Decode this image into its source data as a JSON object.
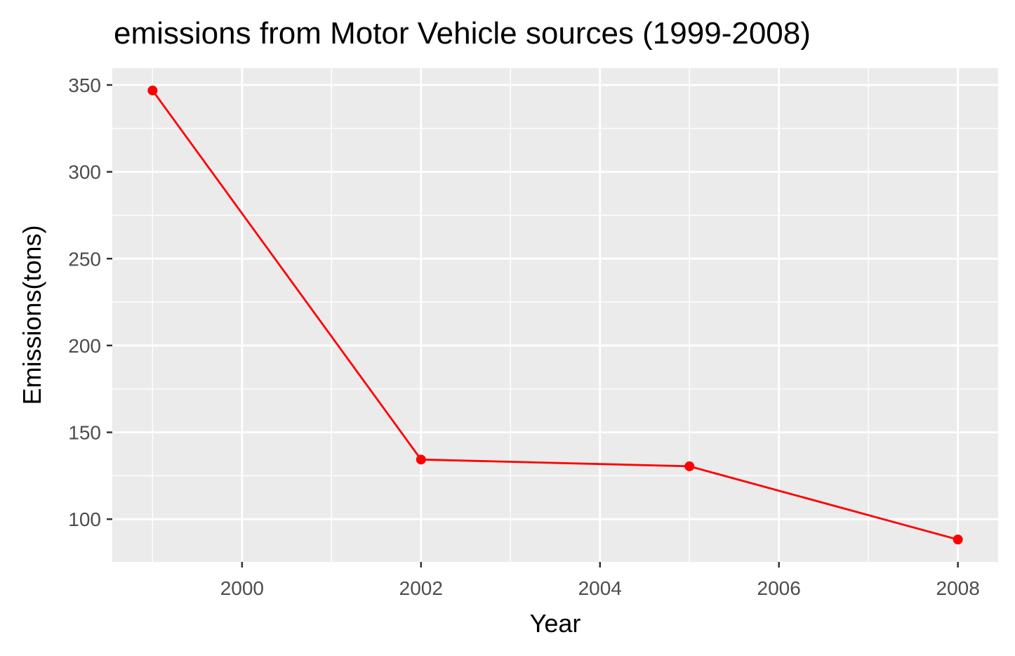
{
  "chart_data": {
    "type": "line",
    "title": "emissions from Motor Vehicle sources (1999-2008)",
    "xlabel": "Year",
    "ylabel": "Emissions(tons)",
    "x": [
      1999,
      2002,
      2005,
      2008
    ],
    "series": [
      {
        "values": [
          346.82,
          134.31,
          130.43,
          88.28
        ]
      }
    ],
    "xlim": [
      1998.55,
      2008.45
    ],
    "ylim": [
      75.4,
      359.7
    ],
    "x_ticks": [
      2000,
      2002,
      2004,
      2006,
      2008
    ],
    "y_ticks": [
      100,
      150,
      200,
      250,
      300,
      350
    ],
    "x_tick_labels": [
      "2000",
      "2002",
      "2004",
      "2006",
      "2008"
    ],
    "y_tick_labels": [
      "100",
      "150",
      "200",
      "250",
      "300",
      "350"
    ],
    "grid": true,
    "legend": "none",
    "colors": {
      "series": "#ff0000",
      "panel_background": "#ebebeb",
      "grid": "#ffffff",
      "tick_text": "#4d4d4d",
      "tick_mark": "#333333"
    }
  }
}
